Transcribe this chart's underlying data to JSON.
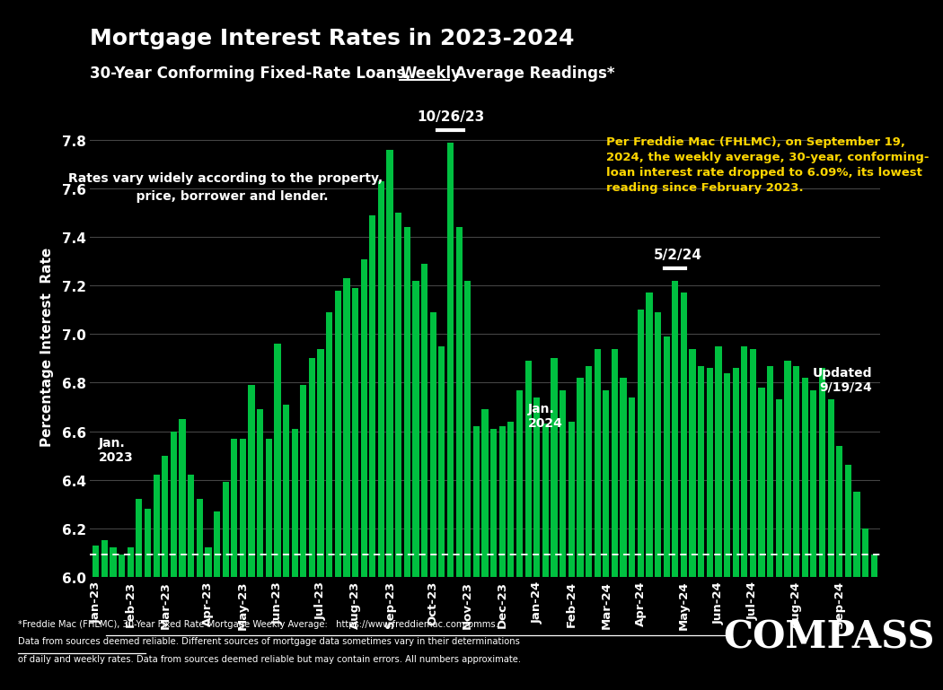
{
  "title": "Mortgage Interest Rates in 2023-2024",
  "subtitle_part1": "30-Year Conforming Fixed-Rate Loans, ",
  "subtitle_weekly": "Weekly",
  "subtitle_part2": " Average Readings*",
  "ylabel": "Percentage Interest  Rate",
  "background_color": "#000000",
  "bar_color": "#00c040",
  "text_color": "#ffffff",
  "highlight_color": "#ffd700",
  "ylim": [
    6.0,
    7.9
  ],
  "yticks": [
    6.0,
    6.2,
    6.4,
    6.6,
    6.8,
    7.0,
    7.2,
    7.4,
    7.6,
    7.8
  ],
  "dashed_line_y": 6.09,
  "xtick_labels": [
    "Jan-23",
    "Feb-23",
    "Mar-23",
    "Apr-23",
    "May-23",
    "Jun-23",
    "Jul-23",
    "Aug-23",
    "Sep-23",
    "Oct-23",
    "Nov-23",
    "Dec-23",
    "Jan-24",
    "Feb-24",
    "Mar-24",
    "Apr-24",
    "May-24",
    "Jun-24",
    "Jul-24",
    "Aug-24",
    "Sep-24"
  ],
  "month_starts": [
    0,
    4,
    8,
    13,
    17,
    21,
    26,
    30,
    34,
    39,
    43,
    47,
    51,
    55,
    59,
    63,
    68,
    72,
    76,
    81,
    86
  ],
  "values": [
    6.13,
    6.15,
    6.12,
    6.09,
    6.12,
    6.32,
    6.28,
    6.42,
    6.5,
    6.6,
    6.65,
    6.42,
    6.32,
    6.12,
    6.27,
    6.39,
    6.57,
    6.57,
    6.79,
    6.69,
    6.57,
    6.96,
    6.71,
    6.61,
    6.79,
    6.9,
    6.94,
    7.09,
    7.18,
    7.23,
    7.19,
    7.31,
    7.49,
    7.63,
    7.76,
    7.5,
    7.44,
    7.22,
    7.29,
    7.09,
    6.95,
    7.79,
    7.44,
    7.22,
    6.62,
    6.69,
    6.61,
    6.62,
    6.64,
    6.77,
    6.89,
    6.74,
    6.63,
    6.9,
    6.77,
    6.64,
    6.82,
    6.87,
    6.94,
    6.77,
    6.94,
    6.82,
    6.74,
    7.1,
    7.17,
    7.09,
    6.99,
    7.22,
    7.17,
    6.94,
    6.87,
    6.86,
    6.95,
    6.84,
    6.86,
    6.95,
    6.94,
    6.78,
    6.87,
    6.73,
    6.89,
    6.87,
    6.82,
    6.77,
    6.86,
    6.73,
    6.54,
    6.46,
    6.35,
    6.2,
    6.09
  ],
  "peak_idx": 41,
  "peak_label": "10/26/23",
  "local_peak_idx": 67,
  "local_peak_label": "5/2/24",
  "text_rates_vary": "Rates vary widely according to the property,\n   price, borrower and lender.",
  "text_freddie": "Per Freddie Mac (FHLMC), on September 19,\n2024, the weekly average, 30-year, conforming-\nloan interest rate dropped to 6.09%, its lowest\nreading since February 2023.",
  "text_jan2023": "Jan.\n2023",
  "text_jan2024": "Jan.\n2024",
  "text_updated": "Updated\n9/19/24",
  "footnote1": "*Freddie Mac (FHLMC), 30-Year Fixed Rate Mortgage Weekly Average:   https://www.freddiemac.com/pmms.",
  "footnote2": "Data from sources deemed reliable. Different sources of mortgage data sometimes vary in their determinations",
  "footnote3": "of daily and weekly rates. Data from sources deemed reliable but may contain errors. All numbers approximate.",
  "compass": "COMPASS"
}
